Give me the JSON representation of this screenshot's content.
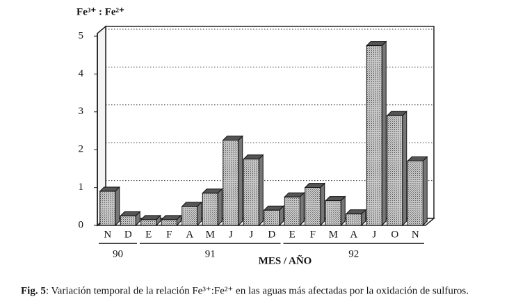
{
  "chart_data": {
    "type": "bar",
    "y_label": "Fe³⁺ : Fe²⁺",
    "x_label": "MES / AÑO",
    "categories": [
      "N",
      "D",
      "E",
      "F",
      "A",
      "M",
      "J",
      "J",
      "D",
      "E",
      "F",
      "M",
      "A",
      "J",
      "O",
      "N"
    ],
    "years": [
      "90",
      "90",
      "91",
      "91",
      "91",
      "91",
      "91",
      "91",
      "91",
      "92",
      "92",
      "92",
      "92",
      "92",
      "92",
      "92"
    ],
    "values": [
      0.9,
      0.25,
      0.15,
      0.15,
      0.5,
      0.85,
      2.25,
      1.75,
      0.4,
      0.75,
      1.0,
      0.65,
      0.3,
      4.75,
      2.9,
      1.7
    ],
    "color": "#a8a8a8",
    "ylim": [
      0,
      5
    ],
    "yticks": [
      0,
      1,
      2,
      3,
      4,
      5
    ],
    "grid": true
  },
  "caption": {
    "label": "Fig. 5",
    "text": ": Variación temporal de la relación Fe³⁺:Fe²⁺ en las aguas más afectadas por la oxidación de sulfuros."
  }
}
